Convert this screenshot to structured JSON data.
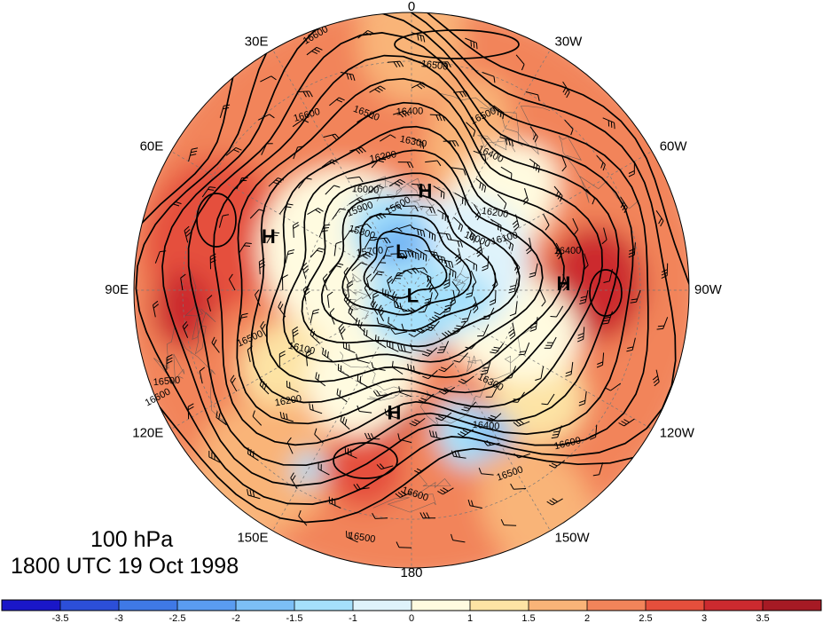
{
  "level_label": "100 hPa",
  "time_label": "1800 UTC 19 Oct 1998",
  "longitude_labels": [
    "0",
    "30W",
    "60W",
    "90W",
    "120W",
    "150W",
    "180",
    "150E",
    "120E",
    "90E",
    "60E",
    "30E"
  ],
  "pressure_centers": [
    {
      "symbol": "H",
      "lon": -8,
      "lat": 62
    },
    {
      "symbol": "L",
      "lon": 15,
      "lat": 79
    },
    {
      "symbol": "L",
      "lon": -170,
      "lat": 88
    },
    {
      "symbol": "H",
      "lon": 70,
      "lat": 48
    },
    {
      "symbol": "H",
      "lon": -88,
      "lat": 48
    },
    {
      "symbol": "H",
      "lon": 172,
      "lat": 55
    }
  ],
  "contour_labels": [
    "16600",
    "16500",
    "16600",
    "16500",
    "16400",
    "16500",
    "16300",
    "16200",
    "16400",
    "16000",
    "15900",
    "15800",
    "15700",
    "15600",
    "16200",
    "16100",
    "16000",
    "16400",
    "16500",
    "16100",
    "16200",
    "16300",
    "16400",
    "16500",
    "16600",
    "16500",
    "16600",
    "16500",
    "16600"
  ],
  "color_scale": {
    "tick_labels": [
      "-3.5",
      "-3",
      "-2.5",
      "-2",
      "-1.5",
      "-1",
      "0",
      "1",
      "1.5",
      "2",
      "2.5",
      "3",
      "3.5"
    ],
    "colors": [
      "#1a17c8",
      "#2c4fd8",
      "#3f79e6",
      "#5a9cf0",
      "#7cbff6",
      "#a5e0fb",
      "#dff3fb",
      "#fffbe0",
      "#fde3a4",
      "#f9b478",
      "#f2845a",
      "#e54f3c",
      "#cc2a2f",
      "#a61a24"
    ]
  }
}
